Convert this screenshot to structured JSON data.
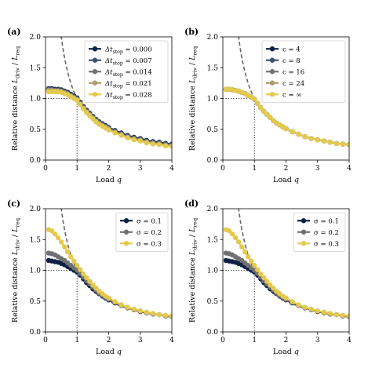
{
  "colors": {
    "seq5": [
      "#0d2145",
      "#3d5275",
      "#717171",
      "#a8a070",
      "#e3c94e"
    ],
    "seq3": [
      "#0d2145",
      "#717171",
      "#e3c94e"
    ],
    "reference": "#666666"
  },
  "chart_data": [
    {
      "panel": "(a)",
      "type": "line",
      "xlabel": "Load q",
      "ylabel": "Relative distance L_driv / L_req",
      "xlim": [
        0,
        4
      ],
      "ylim": [
        0,
        2
      ],
      "xticks": [
        "0",
        "1",
        "2",
        "3",
        "4"
      ],
      "yticks": [
        "0.0",
        "0.5",
        "1.0",
        "1.5",
        "2.0"
      ],
      "legend_position": "top-right",
      "x": [
        0.1,
        0.2,
        0.3,
        0.4,
        0.5,
        0.6,
        0.7,
        0.8,
        0.9,
        1.0,
        1.1,
        1.2,
        1.3,
        1.4,
        1.5,
        1.6,
        1.7,
        1.8,
        1.9,
        2.0,
        2.2,
        2.4,
        2.6,
        2.8,
        3.0,
        3.2,
        3.4,
        3.6,
        3.8,
        4.0
      ],
      "series": [
        {
          "name": "Δt_stop = 0.000",
          "values": [
            1.16,
            1.16,
            1.15,
            1.15,
            1.14,
            1.12,
            1.1,
            1.07,
            1.04,
            1.01,
            0.94,
            0.87,
            0.81,
            0.76,
            0.71,
            0.66,
            0.62,
            0.59,
            0.56,
            0.53,
            0.48,
            0.44,
            0.4,
            0.37,
            0.35,
            0.32,
            0.3,
            0.29,
            0.27,
            0.26
          ]
        },
        {
          "name": "Δt_stop = 0.007",
          "values": [
            1.15,
            1.15,
            1.14,
            1.14,
            1.13,
            1.11,
            1.09,
            1.06,
            1.03,
            1.0,
            0.93,
            0.86,
            0.8,
            0.75,
            0.7,
            0.65,
            0.61,
            0.58,
            0.55,
            0.52,
            0.47,
            0.43,
            0.39,
            0.36,
            0.34,
            0.31,
            0.29,
            0.28,
            0.26,
            0.25
          ]
        },
        {
          "name": "Δt_stop = 0.014",
          "values": [
            1.14,
            1.14,
            1.13,
            1.13,
            1.12,
            1.1,
            1.08,
            1.05,
            1.02,
            0.99,
            0.92,
            0.85,
            0.79,
            0.74,
            0.69,
            0.64,
            0.6,
            0.57,
            0.54,
            0.51,
            0.46,
            0.42,
            0.38,
            0.35,
            0.33,
            0.3,
            0.28,
            0.27,
            0.25,
            0.24
          ]
        },
        {
          "name": "Δt_stop = 0.021",
          "values": [
            1.13,
            1.13,
            1.12,
            1.12,
            1.11,
            1.09,
            1.07,
            1.04,
            1.01,
            0.98,
            0.91,
            0.84,
            0.78,
            0.73,
            0.68,
            0.63,
            0.59,
            0.56,
            0.53,
            0.5,
            0.45,
            0.41,
            0.37,
            0.34,
            0.32,
            0.29,
            0.27,
            0.26,
            0.24,
            0.23
          ]
        },
        {
          "name": "Δt_stop = 0.028",
          "values": [
            1.11,
            1.11,
            1.11,
            1.11,
            1.1,
            1.08,
            1.06,
            1.03,
            1.0,
            0.97,
            0.9,
            0.83,
            0.77,
            0.72,
            0.67,
            0.62,
            0.58,
            0.55,
            0.52,
            0.49,
            0.44,
            0.4,
            0.36,
            0.33,
            0.31,
            0.28,
            0.26,
            0.25,
            0.23,
            0.22
          ]
        }
      ]
    },
    {
      "panel": "(b)",
      "type": "line",
      "xlabel": "Load q",
      "ylabel": "Relative distance L_driv / L_req",
      "xlim": [
        0,
        4
      ],
      "ylim": [
        0,
        2
      ],
      "xticks": [
        "0",
        "1",
        "2",
        "3",
        "4"
      ],
      "yticks": [
        "0.0",
        "0.5",
        "1.0",
        "1.5",
        "2.0"
      ],
      "legend_position": "top-right",
      "x": [
        0.1,
        0.2,
        0.3,
        0.4,
        0.5,
        0.6,
        0.7,
        0.8,
        0.9,
        1.0,
        1.1,
        1.2,
        1.3,
        1.4,
        1.5,
        1.6,
        1.7,
        1.8,
        1.9,
        2.0,
        2.2,
        2.4,
        2.6,
        2.8,
        3.0,
        3.2,
        3.4,
        3.6,
        3.8,
        4.0
      ],
      "series": [
        {
          "name": "c = 4",
          "values": [
            1.15,
            1.15,
            1.14,
            1.13,
            1.12,
            1.1,
            1.08,
            1.05,
            1.02,
            0.99,
            0.92,
            0.85,
            0.79,
            0.74,
            0.69,
            0.64,
            0.6,
            0.57,
            0.54,
            0.51,
            0.46,
            0.42,
            0.38,
            0.35,
            0.33,
            0.31,
            0.29,
            0.27,
            0.26,
            0.25
          ]
        },
        {
          "name": "c = 8",
          "values": [
            1.15,
            1.15,
            1.14,
            1.13,
            1.12,
            1.1,
            1.08,
            1.05,
            1.02,
            0.99,
            0.92,
            0.85,
            0.79,
            0.74,
            0.69,
            0.64,
            0.6,
            0.57,
            0.54,
            0.51,
            0.46,
            0.42,
            0.38,
            0.35,
            0.33,
            0.31,
            0.29,
            0.27,
            0.26,
            0.25
          ]
        },
        {
          "name": "c = 16",
          "values": [
            1.15,
            1.15,
            1.14,
            1.13,
            1.12,
            1.1,
            1.08,
            1.05,
            1.02,
            0.99,
            0.92,
            0.85,
            0.79,
            0.74,
            0.69,
            0.64,
            0.6,
            0.57,
            0.54,
            0.51,
            0.46,
            0.42,
            0.38,
            0.35,
            0.33,
            0.31,
            0.29,
            0.27,
            0.26,
            0.25
          ]
        },
        {
          "name": "c = 24",
          "values": [
            1.15,
            1.15,
            1.14,
            1.13,
            1.12,
            1.1,
            1.08,
            1.05,
            1.02,
            0.99,
            0.92,
            0.85,
            0.79,
            0.74,
            0.69,
            0.64,
            0.6,
            0.57,
            0.54,
            0.51,
            0.46,
            0.42,
            0.38,
            0.35,
            0.33,
            0.31,
            0.29,
            0.27,
            0.26,
            0.25
          ]
        },
        {
          "name": "c = ∞",
          "values": [
            1.15,
            1.15,
            1.14,
            1.13,
            1.12,
            1.1,
            1.08,
            1.05,
            1.02,
            0.99,
            0.92,
            0.85,
            0.79,
            0.74,
            0.69,
            0.64,
            0.6,
            0.57,
            0.54,
            0.51,
            0.46,
            0.42,
            0.38,
            0.35,
            0.33,
            0.31,
            0.29,
            0.27,
            0.26,
            0.25
          ]
        }
      ]
    },
    {
      "panel": "(c)",
      "type": "line",
      "xlabel": "Load q",
      "ylabel": "Relative distance L_driv / L_req",
      "xlim": [
        0,
        4
      ],
      "ylim": [
        0,
        2
      ],
      "xticks": [
        "0",
        "1",
        "2",
        "3",
        "4"
      ],
      "yticks": [
        "0.0",
        "0.5",
        "1.0",
        "1.5",
        "2.0"
      ],
      "legend_position": "top-right",
      "x": [
        0.1,
        0.2,
        0.3,
        0.4,
        0.5,
        0.6,
        0.7,
        0.8,
        0.9,
        1.0,
        1.1,
        1.2,
        1.3,
        1.4,
        1.5,
        1.6,
        1.7,
        1.8,
        1.9,
        2.0,
        2.2,
        2.4,
        2.6,
        2.8,
        3.0,
        3.2,
        3.4,
        3.6,
        3.8,
        4.0
      ],
      "series": [
        {
          "name": "σ = 0.1",
          "values": [
            1.16,
            1.15,
            1.14,
            1.13,
            1.11,
            1.09,
            1.06,
            1.03,
            1.0,
            0.97,
            0.92,
            0.86,
            0.8,
            0.75,
            0.7,
            0.66,
            0.62,
            0.58,
            0.55,
            0.52,
            0.47,
            0.43,
            0.39,
            0.36,
            0.33,
            0.31,
            0.29,
            0.28,
            0.26,
            0.25
          ]
        },
        {
          "name": "σ = 0.2",
          "values": [
            1.28,
            1.27,
            1.25,
            1.22,
            1.19,
            1.16,
            1.12,
            1.08,
            1.04,
            1.0,
            0.95,
            0.89,
            0.83,
            0.78,
            0.73,
            0.68,
            0.63,
            0.59,
            0.56,
            0.53,
            0.48,
            0.43,
            0.39,
            0.36,
            0.34,
            0.31,
            0.29,
            0.28,
            0.26,
            0.25
          ]
        },
        {
          "name": "σ = 0.3",
          "values": [
            1.66,
            1.64,
            1.59,
            1.53,
            1.46,
            1.38,
            1.3,
            1.22,
            1.15,
            1.08,
            1.01,
            0.94,
            0.88,
            0.82,
            0.76,
            0.71,
            0.66,
            0.62,
            0.58,
            0.55,
            0.49,
            0.44,
            0.4,
            0.37,
            0.34,
            0.32,
            0.3,
            0.28,
            0.27,
            0.26
          ]
        }
      ]
    },
    {
      "panel": "(d)",
      "type": "line",
      "xlabel": "Load q",
      "ylabel": "Relative distance L_driv / L_req",
      "xlim": [
        0,
        4
      ],
      "ylim": [
        0,
        2
      ],
      "xticks": [
        "0",
        "1",
        "2",
        "3",
        "4"
      ],
      "yticks": [
        "0.0",
        "0.5",
        "1.0",
        "1.5",
        "2.0"
      ],
      "legend_position": "top-right",
      "x": [
        0.1,
        0.2,
        0.3,
        0.4,
        0.5,
        0.6,
        0.7,
        0.8,
        0.9,
        1.0,
        1.1,
        1.2,
        1.3,
        1.4,
        1.5,
        1.6,
        1.7,
        1.8,
        1.9,
        2.0,
        2.2,
        2.4,
        2.6,
        2.8,
        3.0,
        3.2,
        3.4,
        3.6,
        3.8,
        4.0
      ],
      "series": [
        {
          "name": "σ = 0.1",
          "values": [
            1.16,
            1.15,
            1.14,
            1.13,
            1.11,
            1.09,
            1.06,
            1.03,
            1.0,
            0.97,
            0.92,
            0.86,
            0.8,
            0.75,
            0.7,
            0.66,
            0.62,
            0.58,
            0.55,
            0.52,
            0.47,
            0.43,
            0.39,
            0.36,
            0.33,
            0.31,
            0.29,
            0.28,
            0.26,
            0.25
          ]
        },
        {
          "name": "σ = 0.2",
          "values": [
            1.28,
            1.27,
            1.25,
            1.22,
            1.19,
            1.16,
            1.12,
            1.08,
            1.04,
            1.0,
            0.95,
            0.89,
            0.83,
            0.78,
            0.73,
            0.68,
            0.63,
            0.59,
            0.56,
            0.53,
            0.48,
            0.43,
            0.39,
            0.36,
            0.34,
            0.31,
            0.29,
            0.28,
            0.26,
            0.25
          ]
        },
        {
          "name": "σ = 0.3",
          "values": [
            1.66,
            1.64,
            1.59,
            1.53,
            1.46,
            1.38,
            1.3,
            1.22,
            1.15,
            1.08,
            1.01,
            0.94,
            0.88,
            0.82,
            0.76,
            0.71,
            0.66,
            0.62,
            0.58,
            0.55,
            0.49,
            0.44,
            0.4,
            0.37,
            0.34,
            0.32,
            0.3,
            0.28,
            0.27,
            0.26
          ]
        }
      ]
    }
  ]
}
